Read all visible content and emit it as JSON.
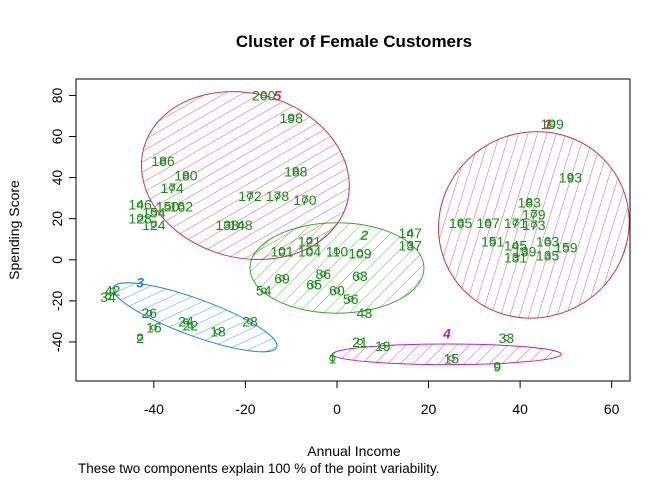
{
  "chart_data": {
    "type": "scatter",
    "title": "Cluster of Female Customers",
    "xlabel": "Annual Income",
    "ylabel": "Spending Score",
    "note": "These two components explain 100 % of the point variability.",
    "xlim": [
      -57,
      64
    ],
    "ylim": [
      -59,
      88
    ],
    "xticks": [
      -40,
      -20,
      0,
      20,
      40,
      60
    ],
    "yticks": [
      -40,
      -20,
      0,
      20,
      40,
      60,
      80
    ],
    "point_color": "#1a8a1a",
    "clusters": [
      {
        "label": "1",
        "color": "#cc3355",
        "label_xy": [
          46,
          66
        ],
        "ellipse": {
          "cx": 43,
          "cy": 17,
          "rx": 21,
          "ry": 45,
          "angle": 28
        }
      },
      {
        "label": "2",
        "color": "#3aa832",
        "label_xy": [
          6,
          12
        ],
        "ellipse": {
          "cx": 0,
          "cy": -4,
          "rx": 19,
          "ry": 22,
          "angle": 0
        }
      },
      {
        "label": "3",
        "color": "#1e8ad0",
        "label_xy": [
          -43,
          -11
        ],
        "ellipse": {
          "cx": -31,
          "cy": -28,
          "rx": 19,
          "ry": 9,
          "angle": -20
        }
      },
      {
        "label": "4",
        "color": "#c020c0",
        "label_xy": [
          24,
          -36
        ],
        "ellipse": {
          "cx": 24,
          "cy": -46,
          "rx": 25,
          "ry": 5,
          "angle": 0
        }
      },
      {
        "label": "5",
        "color": "#cc3355",
        "label_xy": [
          -13,
          80
        ],
        "ellipse": {
          "cx": -20,
          "cy": 41,
          "rx": 23,
          "ry": 40,
          "angle": -15
        }
      }
    ],
    "points": [
      {
        "id": "200",
        "x": -16,
        "y": 80
      },
      {
        "id": "198",
        "x": -10,
        "y": 69
      },
      {
        "id": "186",
        "x": -38,
        "y": 48
      },
      {
        "id": "180",
        "x": -33,
        "y": 41
      },
      {
        "id": "174",
        "x": -36,
        "y": 35
      },
      {
        "id": "188",
        "x": -9,
        "y": 43
      },
      {
        "id": "172",
        "x": -19,
        "y": 31
      },
      {
        "id": "178",
        "x": -13,
        "y": 31
      },
      {
        "id": "170",
        "x": -7,
        "y": 29
      },
      {
        "id": "146",
        "x": -43,
        "y": 27
      },
      {
        "id": "150",
        "x": -37,
        "y": 26
      },
      {
        "id": "162",
        "x": -34,
        "y": 26
      },
      {
        "id": "154",
        "x": -40,
        "y": 23
      },
      {
        "id": "128",
        "x": -43,
        "y": 20
      },
      {
        "id": "124",
        "x": -40,
        "y": 17
      },
      {
        "id": "138",
        "x": -24,
        "y": 17
      },
      {
        "id": "148",
        "x": -21,
        "y": 17
      },
      {
        "id": "199",
        "x": 47,
        "y": 66
      },
      {
        "id": "193",
        "x": 51,
        "y": 40
      },
      {
        "id": "183",
        "x": 42,
        "y": 28
      },
      {
        "id": "179",
        "x": 43,
        "y": 22
      },
      {
        "id": "165",
        "x": 27,
        "y": 18
      },
      {
        "id": "167",
        "x": 33,
        "y": 18
      },
      {
        "id": "171",
        "x": 39,
        "y": 18
      },
      {
        "id": "173",
        "x": 43,
        "y": 17
      },
      {
        "id": "147",
        "x": 16,
        "y": 13
      },
      {
        "id": "151",
        "x": 34,
        "y": 9
      },
      {
        "id": "163",
        "x": 46,
        "y": 9
      },
      {
        "id": "137",
        "x": 16,
        "y": 7
      },
      {
        "id": "159",
        "x": 50,
        "y": 6
      },
      {
        "id": "145",
        "x": 39,
        "y": 7
      },
      {
        "id": "139",
        "x": 41,
        "y": 4
      },
      {
        "id": "135",
        "x": 46,
        "y": 2
      },
      {
        "id": "131",
        "x": 39,
        "y": 1
      },
      {
        "id": "121",
        "x": -6,
        "y": 9
      },
      {
        "id": "101",
        "x": -12,
        "y": 4
      },
      {
        "id": "104",
        "x": -6,
        "y": 4
      },
      {
        "id": "110",
        "x": 0,
        "y": 4
      },
      {
        "id": "109",
        "x": 5,
        "y": 3
      },
      {
        "id": "86",
        "x": -3,
        "y": -7
      },
      {
        "id": "69",
        "x": -12,
        "y": -9
      },
      {
        "id": "65",
        "x": -5,
        "y": -12
      },
      {
        "id": "63",
        "x": 5,
        "y": -8
      },
      {
        "id": "54",
        "x": -16,
        "y": -15
      },
      {
        "id": "60",
        "x": 0,
        "y": -15
      },
      {
        "id": "56",
        "x": 3,
        "y": -19
      },
      {
        "id": "43",
        "x": 6,
        "y": -26
      },
      {
        "id": "42",
        "x": -49,
        "y": -15
      },
      {
        "id": "34",
        "x": -50,
        "y": -18
      },
      {
        "id": "26",
        "x": -41,
        "y": -26
      },
      {
        "id": "24",
        "x": -33,
        "y": -30
      },
      {
        "id": "22",
        "x": -32,
        "y": -32
      },
      {
        "id": "16",
        "x": -40,
        "y": -33
      },
      {
        "id": "28",
        "x": -19,
        "y": -30
      },
      {
        "id": "18",
        "x": -26,
        "y": -35
      },
      {
        "id": "2",
        "x": -43,
        "y": -38
      },
      {
        "id": "33",
        "x": 37,
        "y": -38
      },
      {
        "id": "21",
        "x": 5,
        "y": -40
      },
      {
        "id": "19",
        "x": 10,
        "y": -42
      },
      {
        "id": "15",
        "x": 25,
        "y": -48
      },
      {
        "id": "9",
        "x": 35,
        "y": -52
      },
      {
        "id": "1",
        "x": -1,
        "y": -48
      }
    ]
  }
}
